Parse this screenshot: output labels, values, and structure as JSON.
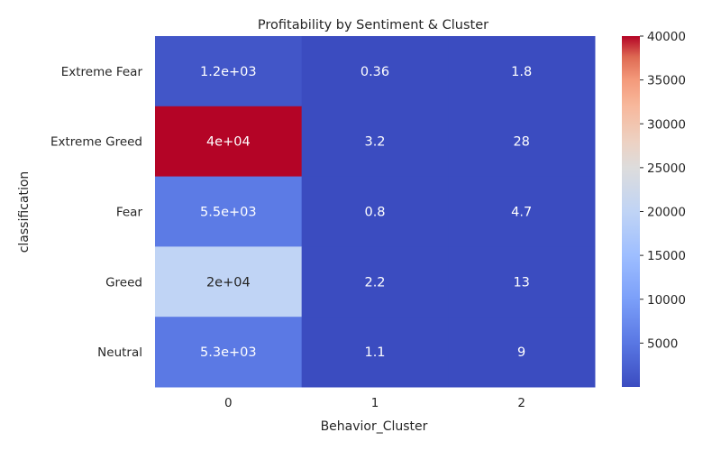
{
  "chart_data": {
    "type": "heatmap",
    "title": "Profitability by Sentiment & Cluster",
    "xlabel": "Behavior_Cluster",
    "ylabel": "classification",
    "x_categories": [
      "0",
      "1",
      "2"
    ],
    "y_categories": [
      "Extreme Fear",
      "Extreme Greed",
      "Fear",
      "Greed",
      "Neutral"
    ],
    "values": [
      [
        1200,
        0.36,
        1.8
      ],
      [
        40000,
        3.2,
        28
      ],
      [
        5500,
        0.8,
        4.7
      ],
      [
        20000,
        2.2,
        13
      ],
      [
        5300,
        1.1,
        9
      ]
    ],
    "annotations": [
      [
        "1.2e+03",
        "0.36",
        "1.8"
      ],
      [
        "4e+04",
        "3.2",
        "28"
      ],
      [
        "5.5e+03",
        "0.8",
        "4.7"
      ],
      [
        "2e+04",
        "2.2",
        "13"
      ],
      [
        "5.3e+03",
        "1.1",
        "9"
      ]
    ],
    "colormap": "coolwarm",
    "vmin": 0.36,
    "vmax": 40000,
    "colorbar_ticks": [
      5000,
      10000,
      15000,
      20000,
      25000,
      30000,
      35000,
      40000
    ],
    "colorbar_tick_labels": [
      "5000",
      "10000",
      "15000",
      "20000",
      "25000",
      "30000",
      "35000",
      "40000"
    ],
    "grid": false,
    "colorbar_placement": "right"
  }
}
